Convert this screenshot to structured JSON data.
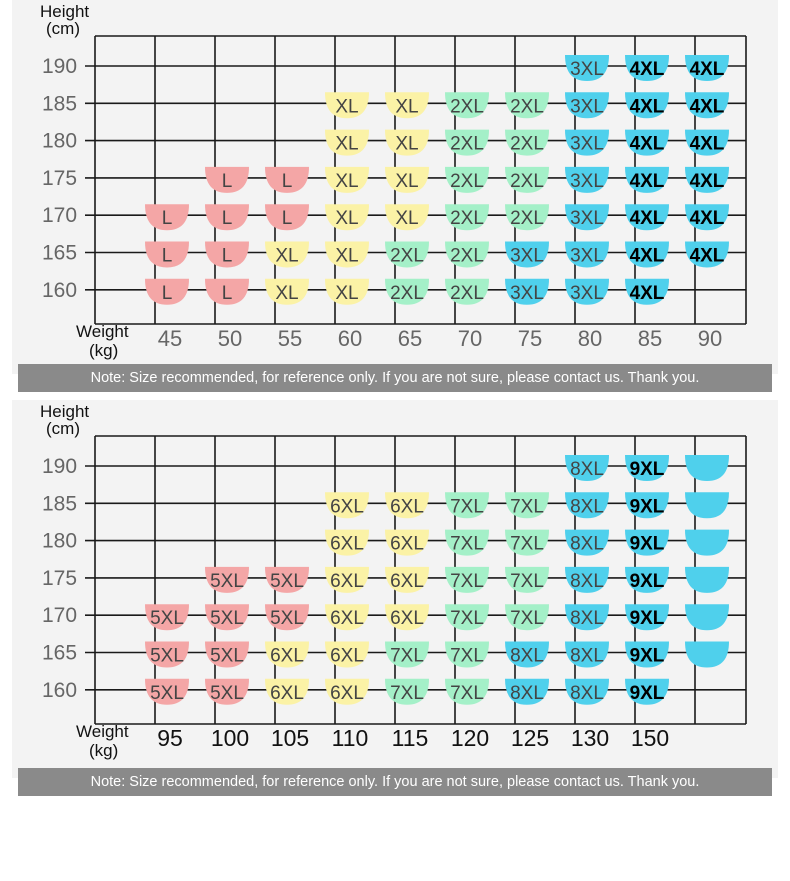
{
  "colors": {
    "pink": "#f4a6a6",
    "yellow": "#fbf2a6",
    "green": "#a4f0c8",
    "blue": "#4fd0ec",
    "note_bg": "#8a8a8a",
    "panel_bg": "#f3f3f3"
  },
  "chart_data": [
    {
      "type": "table",
      "y_title_line1": "Height",
      "y_title_line2": "(cm)",
      "x_title_line1": "Weight",
      "x_title_line2": "(kg)",
      "heights": [
        "190",
        "185",
        "180",
        "175",
        "170",
        "165",
        "160"
      ],
      "weights": [
        "45",
        "50",
        "55",
        "60",
        "65",
        "70",
        "75",
        "80",
        "85",
        "90"
      ],
      "cells": [
        [
          "",
          "",
          "",
          "",
          "",
          "",
          "",
          "3XL",
          "4XL",
          "4XL"
        ],
        [
          "",
          "",
          "",
          "XL",
          "XL",
          "2XL",
          "2XL",
          "3XL",
          "4XL",
          "4XL"
        ],
        [
          "",
          "",
          "",
          "XL",
          "XL",
          "2XL",
          "2XL",
          "3XL",
          "4XL",
          "4XL"
        ],
        [
          "",
          "L",
          "L",
          "XL",
          "XL",
          "2XL",
          "2XL",
          "3XL",
          "4XL",
          "4XL"
        ],
        [
          "L",
          "L",
          "L",
          "XL",
          "XL",
          "2XL",
          "2XL",
          "3XL",
          "4XL",
          "4XL"
        ],
        [
          "L",
          "L",
          "XL",
          "XL",
          "2XL",
          "2XL",
          "3XL",
          "3XL",
          "4XL",
          "4XL"
        ],
        [
          "L",
          "L",
          "XL",
          "XL",
          "2XL",
          "2XL",
          "3XL",
          "3XL",
          "4XL",
          ""
        ]
      ],
      "colors": [
        [
          "",
          "",
          "",
          "",
          "",
          "",
          "",
          "blue",
          "blue",
          "blue"
        ],
        [
          "",
          "",
          "",
          "yellow",
          "yellow",
          "green",
          "green",
          "blue",
          "blue",
          "blue"
        ],
        [
          "",
          "",
          "",
          "yellow",
          "yellow",
          "green",
          "green",
          "blue",
          "blue",
          "blue"
        ],
        [
          "",
          "pink",
          "pink",
          "yellow",
          "yellow",
          "green",
          "green",
          "blue",
          "blue",
          "blue"
        ],
        [
          "pink",
          "pink",
          "pink",
          "yellow",
          "yellow",
          "green",
          "green",
          "blue",
          "blue",
          "blue"
        ],
        [
          "pink",
          "pink",
          "yellow",
          "yellow",
          "green",
          "green",
          "blue",
          "blue",
          "blue",
          "blue"
        ],
        [
          "pink",
          "pink",
          "yellow",
          "yellow",
          "green",
          "green",
          "blue",
          "blue",
          "blue",
          ""
        ]
      ],
      "note": "Note: Size recommended, for reference only. If you are not sure, please contact us. Thank you."
    },
    {
      "type": "table",
      "y_title_line1": "Height",
      "y_title_line2": "(cm)",
      "x_title_line1": "Weight",
      "x_title_line2": "(kg)",
      "heights": [
        "190",
        "185",
        "180",
        "175",
        "170",
        "165",
        "160"
      ],
      "weights": [
        "95",
        "100",
        "105",
        "110",
        "115",
        "120",
        "125",
        "130",
        "150",
        ""
      ],
      "cells": [
        [
          "",
          "",
          "",
          "",
          "",
          "",
          "",
          "8XL",
          "9XL",
          ""
        ],
        [
          "",
          "",
          "",
          "6XL",
          "6XL",
          "7XL",
          "7XL",
          "8XL",
          "9XL",
          ""
        ],
        [
          "",
          "",
          "",
          "6XL",
          "6XL",
          "7XL",
          "7XL",
          "8XL",
          "9XL",
          ""
        ],
        [
          "",
          "5XL",
          "5XL",
          "6XL",
          "6XL",
          "7XL",
          "7XL",
          "8XL",
          "9XL",
          ""
        ],
        [
          "5XL",
          "5XL",
          "5XL",
          "6XL",
          "6XL",
          "7XL",
          "7XL",
          "8XL",
          "9XL",
          ""
        ],
        [
          "5XL",
          "5XL",
          "6XL",
          "6XL",
          "7XL",
          "7XL",
          "8XL",
          "8XL",
          "9XL",
          ""
        ],
        [
          "5XL",
          "5XL",
          "6XL",
          "6XL",
          "7XL",
          "7XL",
          "8XL",
          "8XL",
          "9XL",
          ""
        ]
      ],
      "colors": [
        [
          "",
          "",
          "",
          "",
          "",
          "",
          "",
          "blue",
          "blue",
          "blue"
        ],
        [
          "",
          "",
          "",
          "yellow",
          "yellow",
          "green",
          "green",
          "blue",
          "blue",
          "blue"
        ],
        [
          "",
          "",
          "",
          "yellow",
          "yellow",
          "green",
          "green",
          "blue",
          "blue",
          "blue"
        ],
        [
          "",
          "pink",
          "pink",
          "yellow",
          "yellow",
          "green",
          "green",
          "blue",
          "blue",
          "blue"
        ],
        [
          "pink",
          "pink",
          "pink",
          "yellow",
          "yellow",
          "green",
          "green",
          "blue",
          "blue",
          "blue"
        ],
        [
          "pink",
          "pink",
          "yellow",
          "yellow",
          "green",
          "green",
          "blue",
          "blue",
          "blue",
          "blue"
        ],
        [
          "pink",
          "pink",
          "yellow",
          "yellow",
          "green",
          "green",
          "blue",
          "blue",
          "blue",
          ""
        ]
      ],
      "note": "Note: Size recommended, for reference only. If you are not sure, please contact us. Thank you."
    }
  ]
}
